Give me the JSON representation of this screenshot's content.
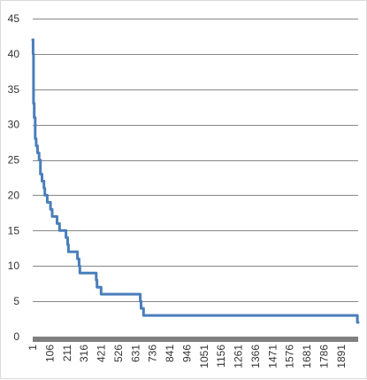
{
  "chart_data": {
    "type": "line",
    "title": "",
    "xlabel": "",
    "ylabel": "",
    "ylim": [
      0,
      45
    ],
    "xlim": [
      1,
      1995
    ],
    "y_ticks": [
      0,
      5,
      10,
      15,
      20,
      25,
      30,
      35,
      40,
      45
    ],
    "x_ticks": [
      "1",
      "106",
      "211",
      "316",
      "421",
      "526",
      "631",
      "736",
      "841",
      "946",
      "1051",
      "1156",
      "1261",
      "1366",
      "1471",
      "1576",
      "1681",
      "1786",
      "1891"
    ],
    "grid": "horizontal",
    "legend": "none",
    "colors": {
      "line": "#4a7ebb",
      "grid": "#878787",
      "axis": "#808080"
    },
    "series": [
      {
        "name": "",
        "x": [
          1,
          3,
          6,
          10,
          16,
          22,
          30,
          40,
          48,
          58,
          70,
          75,
          90,
          110,
          120,
          150,
          165,
          170,
          200,
          205,
          210,
          215,
          220,
          235,
          270,
          275,
          285,
          290,
          300,
          380,
          390,
          395,
          420,
          650,
          660,
          665,
          680,
          750,
          1950,
          1970,
          1990,
          1995
        ],
        "values": [
          42,
          40,
          33,
          31,
          28,
          27,
          26,
          25,
          23,
          22,
          21,
          20,
          19,
          18,
          17,
          16,
          15,
          15,
          15,
          14,
          14,
          13,
          12,
          12,
          12,
          11,
          10,
          9,
          9,
          9,
          8,
          7,
          6,
          6,
          5,
          4,
          3,
          3,
          3,
          3,
          2,
          2
        ]
      }
    ]
  }
}
